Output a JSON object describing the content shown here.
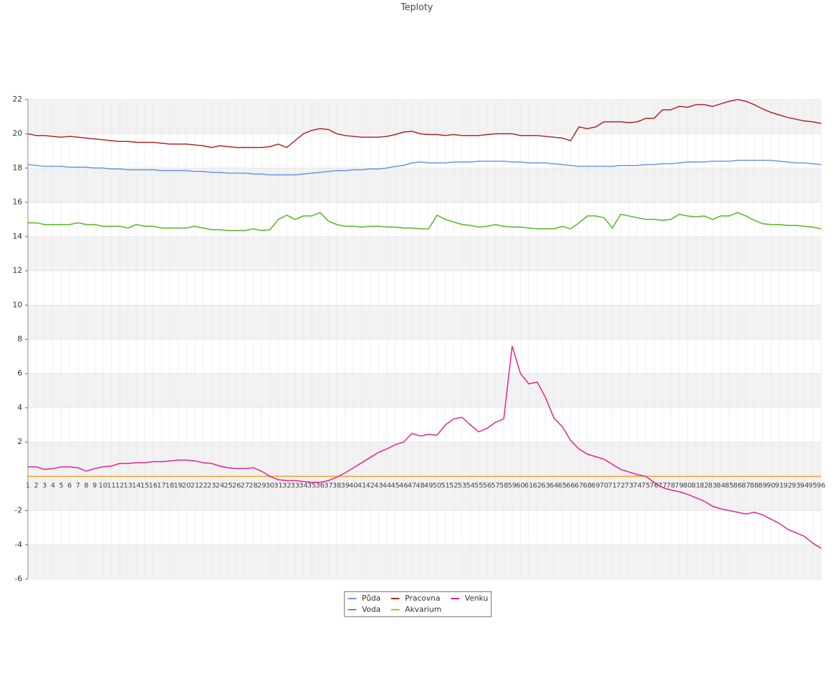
{
  "chart_data": {
    "type": "line",
    "title": "Teploty",
    "x": [
      1,
      2,
      3,
      4,
      5,
      6,
      7,
      8,
      9,
      10,
      11,
      12,
      13,
      14,
      15,
      16,
      17,
      18,
      19,
      20,
      21,
      22,
      23,
      24,
      25,
      26,
      27,
      28,
      29,
      30,
      31,
      32,
      33,
      34,
      35,
      36,
      37,
      38,
      39,
      40,
      41,
      42,
      43,
      44,
      45,
      46,
      47,
      48,
      49,
      50,
      51,
      52,
      53,
      54,
      55,
      56,
      57,
      58,
      59,
      60,
      61,
      62,
      63,
      64,
      65,
      66,
      67,
      68,
      69,
      70,
      71,
      72,
      73,
      74,
      75,
      76,
      77,
      78,
      79,
      80,
      81,
      82,
      83,
      84,
      85,
      86,
      87,
      88,
      89,
      90,
      91,
      92,
      93,
      94,
      95,
      96
    ],
    "xlim": [
      1,
      96
    ],
    "ylim": [
      -6,
      22
    ],
    "yticks": [
      -6,
      -4,
      -2,
      2,
      4,
      6,
      8,
      10,
      12,
      14,
      16,
      18,
      20,
      22
    ],
    "grid": true,
    "legend": "bottom",
    "series": [
      {
        "name": "Půda",
        "color": "#6495ed",
        "values": [
          18.2,
          18.15,
          18.1,
          18.1,
          18.1,
          18.05,
          18.05,
          18.05,
          18.0,
          18.0,
          17.95,
          17.95,
          17.9,
          17.9,
          17.9,
          17.9,
          17.85,
          17.85,
          17.85,
          17.85,
          17.8,
          17.8,
          17.75,
          17.75,
          17.7,
          17.7,
          17.7,
          17.65,
          17.65,
          17.6,
          17.6,
          17.6,
          17.6,
          17.65,
          17.7,
          17.75,
          17.8,
          17.85,
          17.85,
          17.9,
          17.9,
          17.95,
          17.95,
          18.0,
          18.1,
          18.15,
          18.3,
          18.35,
          18.3,
          18.3,
          18.3,
          18.35,
          18.35,
          18.35,
          18.4,
          18.4,
          18.4,
          18.4,
          18.35,
          18.35,
          18.3,
          18.3,
          18.3,
          18.25,
          18.2,
          18.15,
          18.1,
          18.1,
          18.1,
          18.1,
          18.1,
          18.15,
          18.15,
          18.15,
          18.2,
          18.2,
          18.25,
          18.25,
          18.3,
          18.35,
          18.35,
          18.35,
          18.4,
          18.4,
          18.4,
          18.45,
          18.45,
          18.45,
          18.45,
          18.45,
          18.4,
          18.35,
          18.3,
          18.3,
          18.25,
          18.2
        ]
      },
      {
        "name": "Voda",
        "color": "#4cb81e",
        "values": [
          14.8,
          14.8,
          14.7,
          14.7,
          14.7,
          14.7,
          14.8,
          14.7,
          14.7,
          14.6,
          14.6,
          14.6,
          14.5,
          14.7,
          14.6,
          14.6,
          14.5,
          14.5,
          14.5,
          14.5,
          14.6,
          14.5,
          14.4,
          14.4,
          14.35,
          14.35,
          14.35,
          14.45,
          14.35,
          14.4,
          15.0,
          15.25,
          15.0,
          15.2,
          15.2,
          15.4,
          14.9,
          14.7,
          14.6,
          14.6,
          14.55,
          14.6,
          14.6,
          14.55,
          14.55,
          14.5,
          14.5,
          14.45,
          14.45,
          15.25,
          15.0,
          14.85,
          14.7,
          14.65,
          14.55,
          14.6,
          14.7,
          14.6,
          14.55,
          14.55,
          14.5,
          14.45,
          14.45,
          14.45,
          14.6,
          14.45,
          14.8,
          15.2,
          15.2,
          15.1,
          14.5,
          15.3,
          15.2,
          15.1,
          15.0,
          15.0,
          14.95,
          15.0,
          15.3,
          15.2,
          15.15,
          15.2,
          15.0,
          15.2,
          15.2,
          15.4,
          15.2,
          14.95,
          14.75,
          14.7,
          14.7,
          14.65,
          14.65,
          14.6,
          14.55,
          14.45
        ]
      },
      {
        "name": "Pracovna",
        "color": "#b22222",
        "values": [
          20.0,
          19.9,
          19.9,
          19.85,
          19.8,
          19.85,
          19.8,
          19.75,
          19.7,
          19.65,
          19.6,
          19.55,
          19.55,
          19.5,
          19.5,
          19.5,
          19.45,
          19.4,
          19.4,
          19.4,
          19.35,
          19.3,
          19.2,
          19.3,
          19.25,
          19.2,
          19.2,
          19.2,
          19.2,
          19.25,
          19.4,
          19.2,
          19.6,
          20.0,
          20.2,
          20.3,
          20.25,
          20.0,
          19.9,
          19.85,
          19.8,
          19.8,
          19.8,
          19.85,
          19.95,
          20.1,
          20.15,
          20.0,
          19.95,
          19.95,
          19.9,
          19.95,
          19.9,
          19.9,
          19.9,
          19.95,
          20.0,
          20.0,
          20.0,
          19.9,
          19.9,
          19.9,
          19.85,
          19.8,
          19.75,
          19.6,
          20.4,
          20.3,
          20.4,
          20.7,
          20.7,
          20.7,
          20.65,
          20.7,
          20.9,
          20.9,
          21.4,
          21.4,
          21.6,
          21.55,
          21.7,
          21.7,
          21.6,
          21.75,
          21.9,
          22.0,
          21.9,
          21.7,
          21.45,
          21.25,
          21.1,
          20.95,
          20.85,
          20.75,
          20.7,
          20.6
        ]
      },
      {
        "name": "Akvarium",
        "color": "#f0a020",
        "values": [
          0,
          0,
          0,
          0,
          0,
          0,
          0,
          0,
          0,
          0,
          0,
          0,
          0,
          0,
          0,
          0,
          0,
          0,
          0,
          0,
          0,
          0,
          0,
          0,
          0,
          0,
          0,
          0,
          0,
          0,
          0,
          0,
          0,
          0,
          0,
          0,
          0,
          0,
          0,
          0,
          0,
          0,
          0,
          0,
          0,
          0,
          0,
          0,
          0,
          0,
          0,
          0,
          0,
          0,
          0,
          0,
          0,
          0,
          0,
          0,
          0,
          0,
          0,
          0,
          0,
          0,
          0,
          0,
          0,
          0,
          0,
          0,
          0,
          0,
          0,
          0,
          0,
          0,
          0,
          0,
          0,
          0,
          0,
          0,
          0,
          0,
          0,
          0,
          0,
          0,
          0,
          0,
          0,
          0,
          0,
          0
        ]
      },
      {
        "name": "Venku",
        "color": "#e91e8c",
        "values": [
          0.55,
          0.55,
          0.4,
          0.45,
          0.55,
          0.55,
          0.5,
          0.3,
          0.45,
          0.55,
          0.6,
          0.75,
          0.75,
          0.8,
          0.8,
          0.85,
          0.85,
          0.9,
          0.95,
          0.95,
          0.9,
          0.8,
          0.75,
          0.6,
          0.5,
          0.45,
          0.45,
          0.5,
          0.3,
          0.0,
          -0.2,
          -0.25,
          -0.25,
          -0.3,
          -0.35,
          -0.35,
          -0.25,
          -0.05,
          0.2,
          0.5,
          0.8,
          1.1,
          1.4,
          1.6,
          1.85,
          2.0,
          2.5,
          2.35,
          2.45,
          2.4,
          3.0,
          3.35,
          3.45,
          3.0,
          2.6,
          2.8,
          3.15,
          3.35,
          7.6,
          6.0,
          5.4,
          5.5,
          4.6,
          3.4,
          2.9,
          2.1,
          1.6,
          1.3,
          1.15,
          1.0,
          0.7,
          0.4,
          0.25,
          0.1,
          0.0,
          -0.35,
          -0.65,
          -0.8,
          -0.9,
          -1.05,
          -1.25,
          -1.45,
          -1.75,
          -1.9,
          -2.0,
          -2.1,
          -2.2,
          -2.1,
          -2.25,
          -2.5,
          -2.75,
          -3.1,
          -3.3,
          -3.5,
          -3.9,
          -4.2
        ]
      }
    ]
  }
}
